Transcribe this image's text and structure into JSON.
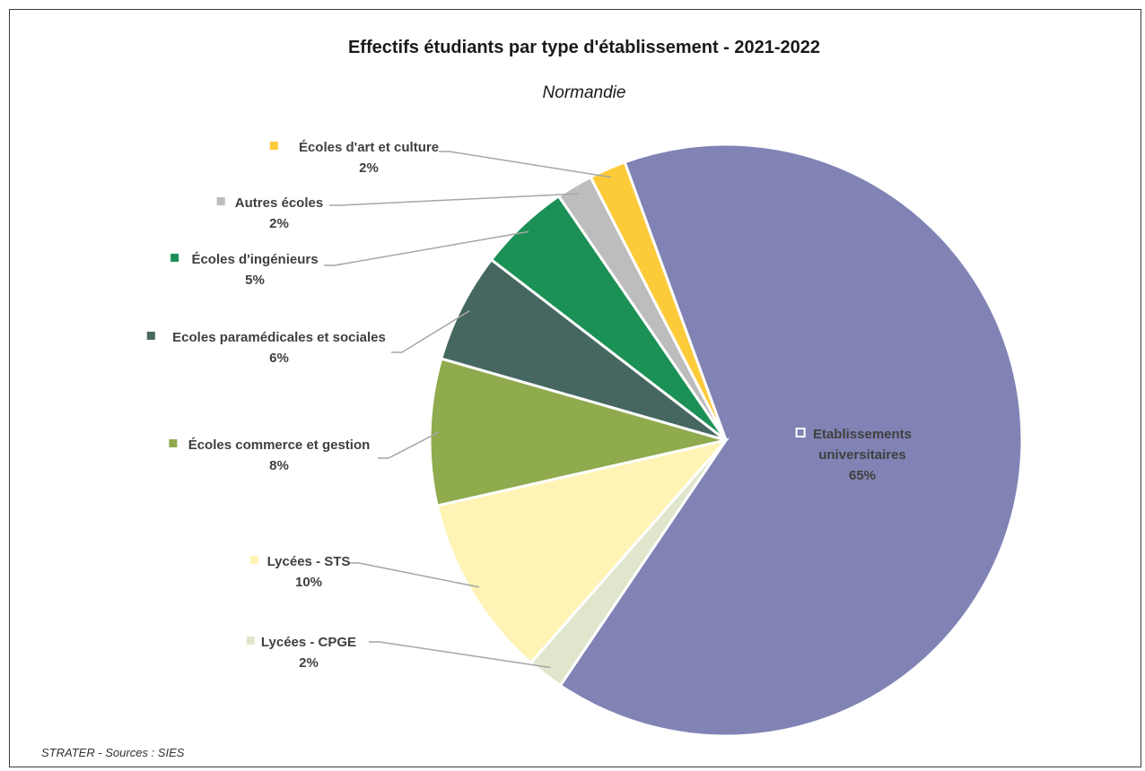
{
  "chart_data": {
    "type": "pie",
    "title": "Effectifs étudiants par type d'établissement - 2021-2022",
    "subtitle": "Normandie",
    "source": "STRATER - Sources : SIES",
    "slices": [
      {
        "label": "Etablissements universitaires",
        "value": 65,
        "display": "65%",
        "color": "#8083b4"
      },
      {
        "label": "Lycées - CPGE",
        "value": 2,
        "display": "2%",
        "color": "#dfe6cc"
      },
      {
        "label": "Lycées - STS",
        "value": 10,
        "display": "10%",
        "color": "#fff4b6"
      },
      {
        "label": "Écoles commerce et gestion",
        "value": 8,
        "display": "8%",
        "color": "#8fab4e"
      },
      {
        "label": "Ecoles paramédicales et sociales",
        "value": 6,
        "display": "6%",
        "color": "#45675f"
      },
      {
        "label": "Écoles d'ingénieurs",
        "value": 5,
        "display": "5%",
        "color": "#1c9156"
      },
      {
        "label": "Autres écoles",
        "value": 2,
        "display": "2%",
        "color": "#bdbdbd"
      },
      {
        "label": "Écoles d'art et culture",
        "value": 2,
        "display": "2%",
        "color": "#fdcb3a"
      }
    ]
  }
}
